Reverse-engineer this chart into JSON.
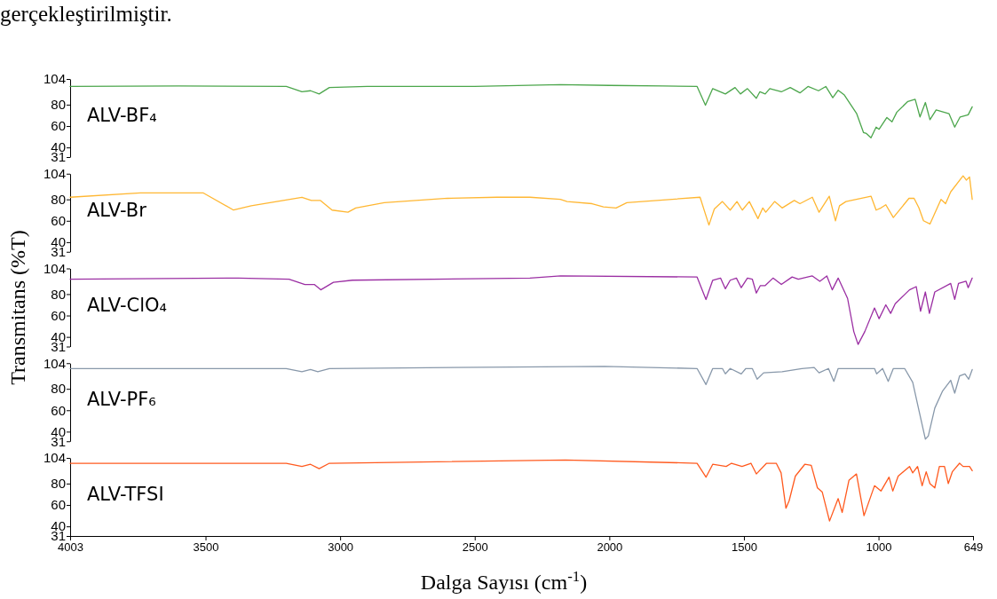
{
  "chart_data": [
    {
      "type": "line",
      "annotations": [
        "gerçekleştirilmiştir."
      ],
      "xlim": [
        4003,
        649
      ],
      "ylim": [
        31,
        104
      ],
      "yticks": [
        31,
        40,
        60,
        80,
        104
      ],
      "tick_labels": "y",
      "series": [
        {
          "name": "ALV-BF₄",
          "color": "#4ca64c",
          "x": [
            4003,
            3600,
            3200,
            3142,
            3110,
            3078,
            3040,
            2900,
            2500,
            2182,
            2000,
            1800,
            1674,
            1643,
            1616,
            1569,
            1533,
            1513,
            1487,
            1454,
            1441,
            1421,
            1404,
            1361,
            1328,
            1292,
            1262,
            1223,
            1196,
            1170,
            1150,
            1127,
            1081,
            1056,
            1045,
            1028,
            1009,
            998,
            969,
            950,
            932,
            891,
            864,
            846,
            826,
            809,
            786,
            738,
            717,
            697,
            667,
            652
          ],
          "values": [
            97,
            97.5,
            97,
            92,
            93,
            90,
            96,
            97,
            97,
            98.7,
            98,
            97.5,
            97,
            79.5,
            95,
            90,
            96,
            90,
            95,
            86,
            92,
            90,
            95,
            92,
            96,
            91,
            97,
            93,
            97,
            86.5,
            93.5,
            89,
            71.5,
            54,
            53,
            49,
            59,
            57,
            68,
            64,
            73,
            83,
            85,
            68.5,
            82,
            66,
            75,
            71.5,
            59,
            68.5,
            70.5,
            78
          ]
        }
      ]
    },
    {
      "type": "line",
      "xlim": [
        4003,
        649
      ],
      "ylim": [
        31,
        104
      ],
      "yticks": [
        31,
        40,
        60,
        80,
        104
      ],
      "tick_labels": "y",
      "series": [
        {
          "name": "ALV-Br",
          "color": "#ffb733",
          "x": [
            4003,
            3742,
            3508,
            3396,
            3330,
            3142,
            3107,
            3073,
            3030,
            2971,
            2942,
            2836,
            2601,
            2417,
            2295,
            2182,
            2157,
            2064,
            2022,
            1975,
            1935,
            1663,
            1630,
            1610,
            1580,
            1551,
            1526,
            1506,
            1480,
            1448,
            1430,
            1419,
            1386,
            1358,
            1313,
            1292,
            1246,
            1221,
            1183,
            1160,
            1145,
            1121,
            1028,
            1009,
            991,
            973,
            945,
            887,
            868,
            850,
            833,
            809,
            768,
            751,
            732,
            686,
            674,
            662,
            652
          ],
          "values": [
            82,
            86,
            86,
            70,
            74,
            82,
            79,
            79,
            70,
            68,
            72,
            77,
            81,
            82,
            82,
            80,
            78,
            76,
            73,
            72,
            77,
            82,
            56,
            71,
            78,
            70,
            78,
            70,
            78,
            62,
            72,
            68,
            78,
            72,
            79,
            76,
            82,
            68,
            83,
            60,
            74,
            78,
            83,
            70,
            72,
            75,
            63,
            81,
            81,
            72,
            60,
            57,
            80,
            76,
            87,
            102,
            98,
            101,
            80
          ]
        }
      ]
    },
    {
      "type": "line",
      "ylabel": "Transmitans (%T)",
      "xlim": [
        4003,
        649
      ],
      "ylim": [
        31,
        104
      ],
      "yticks": [
        31,
        40,
        60,
        80,
        104
      ],
      "tick_labels": "y",
      "series": [
        {
          "name": "ALV-ClO₄",
          "color": "#9b2fa3",
          "x": [
            4003,
            3378,
            3190,
            3131,
            3096,
            3072,
            3025,
            2954,
            2295,
            2181,
            1674,
            1641,
            1616,
            1587,
            1569,
            1551,
            1528,
            1510,
            1487,
            1469,
            1454,
            1439,
            1421,
            1392,
            1361,
            1321,
            1298,
            1246,
            1218,
            1192,
            1172,
            1150,
            1115,
            1092,
            1076,
            1051,
            1015,
            998,
            973,
            955,
            938,
            885,
            860,
            844,
            826,
            811,
            791,
            732,
            717,
            703,
            675,
            667,
            652
          ],
          "values": [
            94,
            95,
            94,
            89,
            89,
            84,
            91,
            93,
            95,
            97,
            96,
            75,
            93,
            95,
            85,
            93,
            95,
            86,
            95,
            94,
            81,
            88,
            88,
            95,
            89,
            96,
            94,
            97,
            92,
            97,
            84,
            95,
            76,
            45,
            33,
            45,
            67,
            57,
            70,
            62,
            71,
            84,
            87,
            64,
            82,
            62,
            82,
            90,
            75,
            90,
            92,
            86,
            95
          ]
        }
      ]
    },
    {
      "type": "line",
      "xlim": [
        4003,
        649
      ],
      "ylim": [
        31,
        104
      ],
      "yticks": [
        31,
        40,
        60,
        80,
        104
      ],
      "tick_labels": "y",
      "series": [
        {
          "name": "ALV-PF₆",
          "color": "#8898aa",
          "x": [
            4003,
            3200,
            3142,
            3110,
            3083,
            3040,
            2018,
            1674,
            1641,
            1616,
            1580,
            1569,
            1551,
            1510,
            1493,
            1469,
            1451,
            1427,
            1358,
            1285,
            1239,
            1221,
            1186,
            1166,
            1150,
            1038,
            1015,
            1007,
            985,
            964,
            945,
            903,
            873,
            850,
            826,
            815,
            791,
            762,
            732,
            717,
            699,
            679,
            665,
            652
          ],
          "values": [
            99,
            99,
            96,
            98,
            96,
            99,
            101,
            99,
            84,
            99,
            99,
            94,
            99,
            94,
            99,
            99,
            89,
            95,
            96,
            99,
            100,
            95,
            99,
            87,
            99,
            99,
            99,
            94,
            99,
            87,
            99,
            99,
            86,
            60,
            33,
            36,
            62,
            78,
            88,
            76,
            92,
            94,
            89,
            98
          ]
        }
      ]
    },
    {
      "type": "line",
      "xlabel": "Dalga Sayısı (cm$^{-1}$)",
      "xlim": [
        4003,
        649
      ],
      "xticks": [
        4003,
        3500,
        3000,
        2500,
        2000,
        1500,
        1000,
        649
      ],
      "ylim": [
        31,
        104
      ],
      "yticks": [
        31,
        40,
        60,
        80,
        104
      ],
      "series": [
        {
          "name": "ALV-TFSI",
          "color": "#ff5a1f",
          "x": [
            4003,
            3200,
            3142,
            3110,
            3078,
            3040,
            2163,
            1674,
            1641,
            1616,
            1566,
            1546,
            1507,
            1474,
            1454,
            1416,
            1380,
            1362,
            1344,
            1332,
            1309,
            1274,
            1250,
            1227,
            1209,
            1182,
            1150,
            1135,
            1110,
            1082,
            1054,
            1015,
            991,
            961,
            947,
            927,
            885,
            873,
            855,
            838,
            823,
            809,
            791,
            774,
            755,
            741,
            726,
            699,
            686,
            662,
            652
          ],
          "values": [
            99,
            99,
            96,
            98,
            94,
            99,
            102,
            99,
            86,
            98,
            96,
            99,
            96,
            99,
            89,
            99,
            99,
            90,
            57,
            64,
            87,
            98,
            97,
            76,
            72,
            45,
            66,
            53,
            83,
            89,
            50,
            78,
            73,
            86,
            73,
            87,
            96,
            90,
            96,
            78,
            91,
            80,
            76,
            96,
            96,
            80,
            91,
            99,
            96,
            96,
            92
          ]
        }
      ]
    }
  ]
}
